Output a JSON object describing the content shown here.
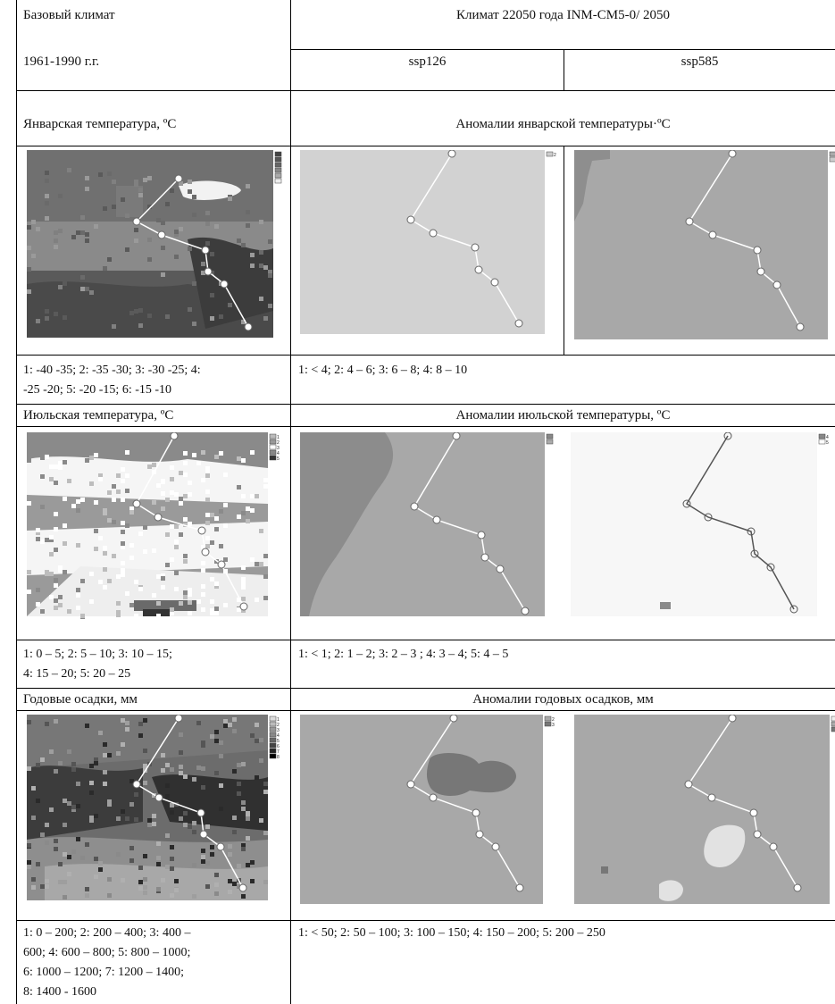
{
  "rows": {
    "header": {
      "left_line1": "Базовый климат",
      "left_line2": "1961-1990 г.г.",
      "right_title": "Климат 22050 года INM-CM5-0/ 2050",
      "scenario_a": "ssp126",
      "scenario_b": "ssp585"
    },
    "january": {
      "left_title": "Январская температура, ºС",
      "right_title": "Аномалии январской температуры·ºС",
      "legend_left_line1": "1: -40 -35; 2: -35 -30; 3: -30 -25;  4:",
      "legend_left_line2": "-25 -20; 5: -20 -15; 6: -15 -10",
      "legend_right": "1:  < 4; 2: 4 – 6;  3: 6 – 8; 4: 8 – 10",
      "base_legend_keys": [
        "",
        "",
        "",
        "",
        "",
        ""
      ],
      "ssp126_legend_keys": [
        "2"
      ],
      "ssp585_legend_keys": [
        "",
        ""
      ]
    },
    "july": {
      "left_title": "Июльская температура, ºС",
      "right_title": "Аномалии июльской температуры, ºС",
      "legend_left_line1": "1: 0 – 5; 2: 5 – 10; 3: 10 – 15;",
      "legend_left_line2": "4: 15 – 20; 5: 20 – 25",
      "legend_right": "1: < 1; 2: 1 – 2; 3: 2 – 3 ; 4: 3 – 4; 5: 4 – 5",
      "base_legend_keys": [
        "1",
        "2",
        "3",
        "4",
        "5"
      ],
      "ssp126_legend_keys": [
        "",
        ""
      ],
      "ssp585_legend_keys": [
        "4",
        "5"
      ]
    },
    "precip": {
      "left_title": "Годовые осадки, мм",
      "right_title": "Аномалии годовых осадков, мм",
      "legend_left_line1": "1: 0 – 200; 2: 200 – 400; 3: 400 –",
      "legend_left_line2": "600; 4: 600 – 800; 5: 800 – 1000;",
      "legend_left_line3": "6: 1000 – 1200; 7: 1200 – 1400;",
      "legend_left_line4": "8: 1400 - 1600",
      "legend_right": "1: < 50; 2: 50 – 100; 3: 100 – 150; 4: 150 – 200; 5: 200 – 250",
      "base_legend_keys": [
        "1",
        "2",
        "3",
        "4",
        "5",
        "6",
        "7",
        "8"
      ],
      "ssp126_legend_keys": [
        "2",
        "3"
      ],
      "ssp585_legend_keys": [
        "",
        "",
        ""
      ]
    }
  },
  "colors": {
    "level_light": "#d2d2d2",
    "level_mid": "#a8a8a8",
    "level_dark": "#7a7a7a",
    "level_darker": "#4a4a4a",
    "route": "#ffffff"
  }
}
